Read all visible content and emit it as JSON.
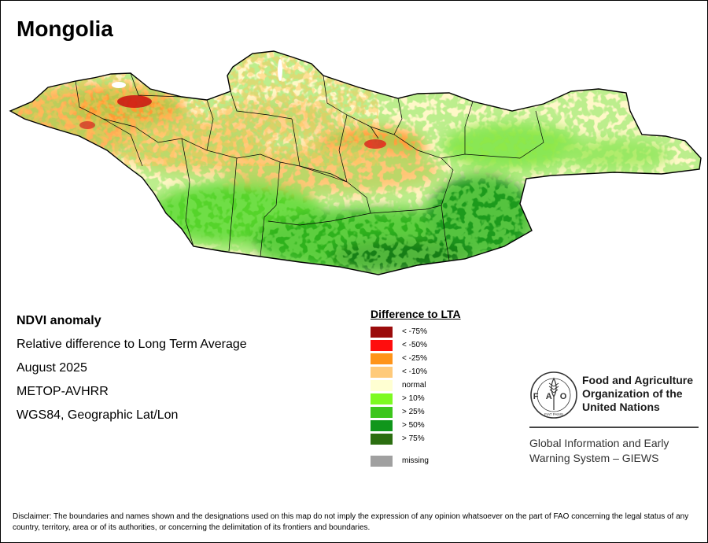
{
  "title": "Mongolia",
  "info_lines": [
    "NDVI anomaly",
    "Relative difference to Long Term Average",
    "August 2025",
    "METOP-AVHRR",
    "WGS84, Geographic Lat/Lon"
  ],
  "legend": {
    "title": "Difference to LTA",
    "items": [
      {
        "label": "< -75%",
        "color": "#9b0c0c"
      },
      {
        "label": "< -50%",
        "color": "#ff0d0d"
      },
      {
        "label": "< -25%",
        "color": "#ff9419"
      },
      {
        "label": "< -10%",
        "color": "#ffca7a"
      },
      {
        "label": "normal",
        "color": "#ffffd2"
      },
      {
        "label": "> 10%",
        "color": "#7dfa21"
      },
      {
        "label": "> 25%",
        "color": "#3dc61c"
      },
      {
        "label": "> 50%",
        "color": "#10961b"
      },
      {
        "label": "> 75%",
        "color": "#2b6e10"
      }
    ],
    "missing": {
      "label": "missing",
      "color": "#a0a0a0"
    }
  },
  "org": {
    "name_lines": [
      "Food and Agriculture",
      "Organization of the",
      "United Nations"
    ],
    "logo_text": "FAO",
    "logo_motto": "FIAT PANIS",
    "program_lines": [
      "Global Information and Early",
      "Warning System – GIEWS"
    ]
  },
  "disclaimer": "Disclaimer: The boundaries and names shown and the designations used on this map do not imply the expression of any opinion whatsoever on the part of FAO concerning the legal status of any country, territory, area or of its authorities, or concerning the delimitation of its frontiers and boundaries."
}
